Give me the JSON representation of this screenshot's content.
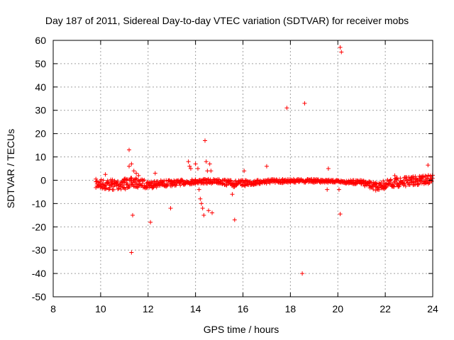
{
  "chart_data": {
    "type": "scatter",
    "title": "Day 187 of 2011, Sidereal Day-to-day VTEC variation (SDTVAR) for receiver mobs",
    "xlabel": "GPS time / hours",
    "ylabel": "SDTVAR / TECUs",
    "xlim": [
      8,
      24
    ],
    "ylim": [
      -50,
      60
    ],
    "xticks": [
      8,
      10,
      12,
      14,
      16,
      18,
      20,
      22,
      24
    ],
    "yticks": [
      -50,
      -40,
      -30,
      -20,
      -10,
      0,
      10,
      20,
      30,
      40,
      50,
      60
    ],
    "grid": true,
    "marker": "+",
    "color": "#ff0000",
    "series": [
      {
        "name": "SDTVAR",
        "baseline_band": [
          [
            9.8,
            -3.5,
            0.5
          ],
          [
            10.5,
            -4.5,
            0.5
          ],
          [
            11.0,
            -4.0,
            1.0
          ],
          [
            11.3,
            -3.0,
            1.0
          ],
          [
            12.0,
            -3.5,
            0.0
          ],
          [
            13.0,
            -2.5,
            0.0
          ],
          [
            14.0,
            -1.5,
            0.5
          ],
          [
            15.0,
            -1.5,
            0.5
          ],
          [
            15.6,
            -3.0,
            0.0
          ],
          [
            16.5,
            -2.0,
            0.0
          ],
          [
            17.0,
            -1.5,
            0.5
          ],
          [
            18.0,
            -1.0,
            0.5
          ],
          [
            19.0,
            -1.0,
            0.5
          ],
          [
            20.0,
            -1.0,
            0.0
          ],
          [
            21.0,
            -2.0,
            0.0
          ],
          [
            21.6,
            -4.5,
            -1.0
          ],
          [
            22.5,
            -3.0,
            1.0
          ],
          [
            23.5,
            -2.0,
            2.0
          ],
          [
            24.0,
            -1.5,
            2.5
          ]
        ],
        "outliers": [
          [
            10.2,
            2.5
          ],
          [
            11.2,
            13
          ],
          [
            11.3,
            -31
          ],
          [
            11.35,
            -15
          ],
          [
            11.2,
            6
          ],
          [
            11.3,
            7
          ],
          [
            11.4,
            4
          ],
          [
            11.5,
            3
          ],
          [
            11.6,
            2
          ],
          [
            12.1,
            -18
          ],
          [
            12.3,
            3
          ],
          [
            12.95,
            -12
          ],
          [
            13.7,
            8
          ],
          [
            13.75,
            6
          ],
          [
            13.8,
            5
          ],
          [
            14.0,
            7
          ],
          [
            14.1,
            5
          ],
          [
            14.15,
            -4
          ],
          [
            14.2,
            -8
          ],
          [
            14.25,
            -10
          ],
          [
            14.3,
            -12
          ],
          [
            14.35,
            -15
          ],
          [
            14.4,
            17
          ],
          [
            14.45,
            8
          ],
          [
            14.5,
            4
          ],
          [
            14.55,
            -13
          ],
          [
            14.6,
            7
          ],
          [
            14.65,
            4
          ],
          [
            14.7,
            -14
          ],
          [
            15.55,
            -6
          ],
          [
            15.65,
            -17
          ],
          [
            16.05,
            4
          ],
          [
            17.0,
            6
          ],
          [
            17.85,
            31
          ],
          [
            18.5,
            -40
          ],
          [
            18.6,
            33
          ],
          [
            19.6,
            5
          ],
          [
            19.55,
            -4
          ],
          [
            20.1,
            57
          ],
          [
            20.15,
            55
          ],
          [
            20.1,
            -14.5
          ],
          [
            20.05,
            -4
          ],
          [
            22.4,
            2
          ],
          [
            23.8,
            6.5
          ]
        ]
      }
    ]
  }
}
